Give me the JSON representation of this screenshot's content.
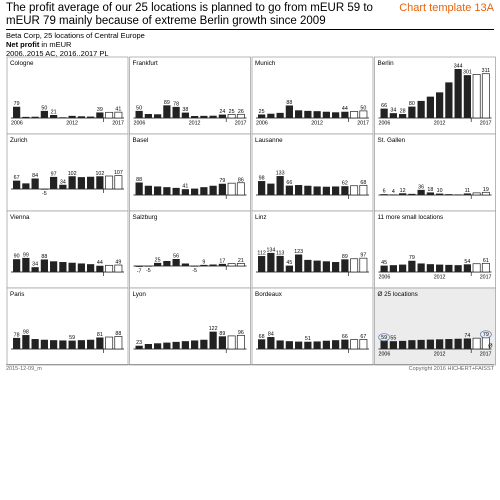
{
  "header": {
    "title": "The profit average of our 25 locations is planned to go from mEUR 59 to mEUR 79 mainly because of extreme Berlin growth since 2009",
    "template_label": "Chart template 13A",
    "company": "Beta Corp, 25 locations of Central Europe",
    "measure_bold": "Net profit",
    "measure_unit": " in mEUR",
    "period": "2006..2015 AC, 2016..2017 PL"
  },
  "footer": {
    "left": "2015-12-09_m",
    "right": "Copyright 2016 HICHERT+FAISST"
  },
  "chart_data": {
    "type": "bar",
    "layout": "small-multiples 4x4",
    "categories": [
      2006,
      2007,
      2008,
      2009,
      2010,
      2011,
      2012,
      2013,
      2014,
      2015,
      2016,
      2017
    ],
    "actual_years": "2006..2015",
    "plan_years": "2016..2017",
    "axis_labels": [
      "2006",
      "2012",
      "2017"
    ],
    "panels": [
      {
        "name": "Cologne",
        "values": [
          79,
          8,
          9,
          50,
          21,
          5,
          15,
          12,
          10,
          39,
          40,
          41
        ],
        "labels": {
          "0": "79",
          "3": "50",
          "4": "21",
          "9": "39",
          "11": "41"
        }
      },
      {
        "name": "Frankfurt",
        "values": [
          50,
          28,
          26,
          89,
          78,
          38,
          14,
          15,
          16,
          24,
          25,
          26
        ],
        "labels": {
          "0": "50",
          "3": "89",
          "4": "78",
          "5": "38",
          "9": "24",
          "10": "25",
          "11": "26"
        }
      },
      {
        "name": "Munich",
        "values": [
          25,
          30,
          36,
          88,
          54,
          50,
          48,
          44,
          40,
          44,
          46,
          50
        ],
        "labels": {
          "0": "25",
          "3": "88",
          "9": "44",
          "11": "50"
        }
      },
      {
        "name": "Berlin",
        "values": [
          66,
          34,
          28,
          80,
          120,
          150,
          180,
          250,
          344,
          301,
          306,
          311
        ],
        "labels": {
          "0": "66",
          "1": "34",
          "2": "28",
          "3": "80",
          "8": "344",
          "9": "301",
          "11": "311"
        }
      },
      {
        "name": "Zurich",
        "values": [
          67,
          45,
          84,
          -5,
          97,
          34,
          102,
          95,
          98,
          102,
          104,
          107
        ],
        "labels": {
          "0": "67",
          "2": "84",
          "3": "-5",
          "4": "97",
          "5": "34",
          "6": "102",
          "9": "102",
          "11": "107"
        }
      },
      {
        "name": "Basel",
        "values": [
          88,
          65,
          60,
          55,
          50,
          41,
          45,
          55,
          65,
          79,
          83,
          86
        ],
        "labels": {
          "0": "88",
          "5": "41",
          "9": "79",
          "11": "86"
        }
      },
      {
        "name": "Lausanne",
        "values": [
          98,
          80,
          133,
          66,
          70,
          65,
          60,
          58,
          60,
          62,
          65,
          68
        ],
        "labels": {
          "0": "98",
          "2": "133",
          "3": "66",
          "9": "62",
          "11": "68"
        }
      },
      {
        "name": "St. Gallen",
        "values": [
          6,
          4,
          12,
          8,
          36,
          18,
          10,
          6,
          4,
          11,
          15,
          19
        ],
        "labels": {
          "0": "6",
          "1": "4",
          "2": "12",
          "4": "36",
          "5": "18",
          "6": "10",
          "9": "11",
          "11": "19"
        }
      },
      {
        "name": "Vienna",
        "values": [
          90,
          99,
          34,
          88,
          75,
          70,
          65,
          60,
          55,
          44,
          47,
          49
        ],
        "labels": {
          "0": "90",
          "1": "99",
          "2": "34",
          "3": "88",
          "9": "44",
          "11": "49"
        }
      },
      {
        "name": "Salzburg",
        "values": [
          -7,
          -5,
          25,
          40,
          56,
          20,
          -5,
          9,
          12,
          17,
          19,
          21
        ],
        "labels": {
          "0": "-7",
          "1": "-5",
          "2": "25",
          "4": "56",
          "6": "-5",
          "7": "9",
          "9": "17",
          "11": "21"
        }
      },
      {
        "name": "Linz",
        "values": [
          112,
          134,
          113,
          45,
          123,
          85,
          80,
          75,
          70,
          89,
          93,
          97
        ],
        "labels": {
          "0": "112",
          "1": "134",
          "2": "113",
          "3": "45",
          "4": "123",
          "9": "89",
          "11": "97"
        }
      },
      {
        "name": "11 more small locations",
        "values": [
          45,
          48,
          52,
          79,
          60,
          55,
          52,
          50,
          48,
          54,
          58,
          61
        ],
        "labels": {
          "0": "45",
          "3": "79",
          "9": "54",
          "11": "61"
        }
      },
      {
        "name": "Paris",
        "values": [
          78,
          98,
          70,
          65,
          62,
          60,
          59,
          62,
          65,
          81,
          84,
          88
        ],
        "labels": {
          "0": "78",
          "1": "98",
          "6": "59",
          "9": "81",
          "11": "88"
        }
      },
      {
        "name": "Lyon",
        "values": [
          23,
          35,
          40,
          45,
          50,
          55,
          60,
          65,
          122,
          89,
          92,
          96
        ],
        "labels": {
          "0": "23",
          "8": "122",
          "9": "89",
          "11": "96"
        }
      },
      {
        "name": "Bordeaux",
        "values": [
          68,
          84,
          60,
          55,
          52,
          51,
          53,
          58,
          62,
          66,
          66,
          67
        ],
        "labels": {
          "0": "68",
          "1": "84",
          "5": "51",
          "9": "66",
          "11": "67"
        }
      },
      {
        "name": "Ø 25 locations",
        "values": [
          59,
          55,
          57,
          62,
          64,
          66,
          68,
          70,
          72,
          74,
          76,
          79
        ],
        "labels": {
          "0": "59",
          "1": "55",
          "9": "74",
          "11": "79"
        },
        "circled": [
          "0",
          "11"
        ],
        "end_mark": "Ø"
      }
    ],
    "colors": {
      "actual": "#222222",
      "plan": "#ffffff",
      "highlight_bg": "#ececec",
      "circle": "#6d89c2"
    }
  }
}
